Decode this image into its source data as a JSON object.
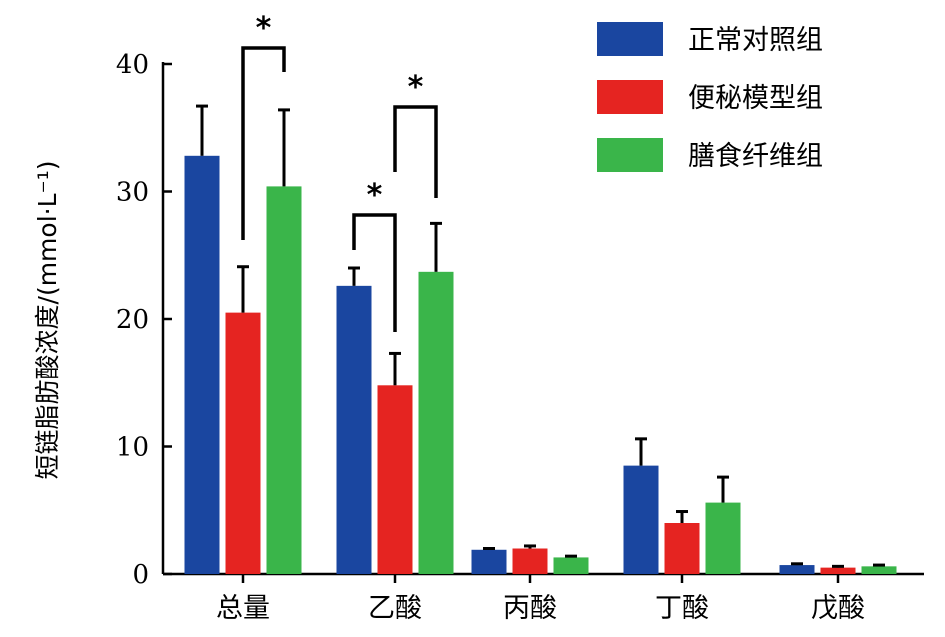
{
  "chart_data": {
    "type": "bar",
    "ylabel": "短链脂肪酸浓度/(mmol·L⁻¹)",
    "ylim": [
      0,
      40
    ],
    "yticks": [
      0,
      10,
      20,
      30,
      40
    ],
    "categories": [
      "总量",
      "乙酸",
      "丙酸",
      "丁酸",
      "戊酸"
    ],
    "series": [
      {
        "name": "正常对照组",
        "color": "#1a46a0",
        "values": [
          32.8,
          22.6,
          1.9,
          8.5,
          0.7
        ],
        "errors": [
          3.9,
          1.4,
          0.1,
          2.1,
          0.1
        ]
      },
      {
        "name": "便秘模型组",
        "color": "#e52421",
        "values": [
          20.5,
          14.8,
          2.0,
          4.0,
          0.5
        ],
        "errors": [
          3.6,
          2.5,
          0.2,
          0.9,
          0.1
        ]
      },
      {
        "name": "膳食纤维组",
        "color": "#3ab54a",
        "values": [
          30.4,
          23.7,
          1.3,
          5.6,
          0.6
        ],
        "errors": [
          6.0,
          3.8,
          0.1,
          2.0,
          0.1
        ]
      }
    ],
    "legend_position": "top-right",
    "grid": false,
    "significance": [
      {
        "category": "总量",
        "from_series": 1,
        "to_series": 2,
        "label": "*"
      },
      {
        "category": "乙酸",
        "from_series": 0,
        "to_series": 1,
        "label": "*"
      },
      {
        "category": "乙酸",
        "from_series": 1,
        "to_series": 2,
        "label": "*"
      }
    ]
  }
}
